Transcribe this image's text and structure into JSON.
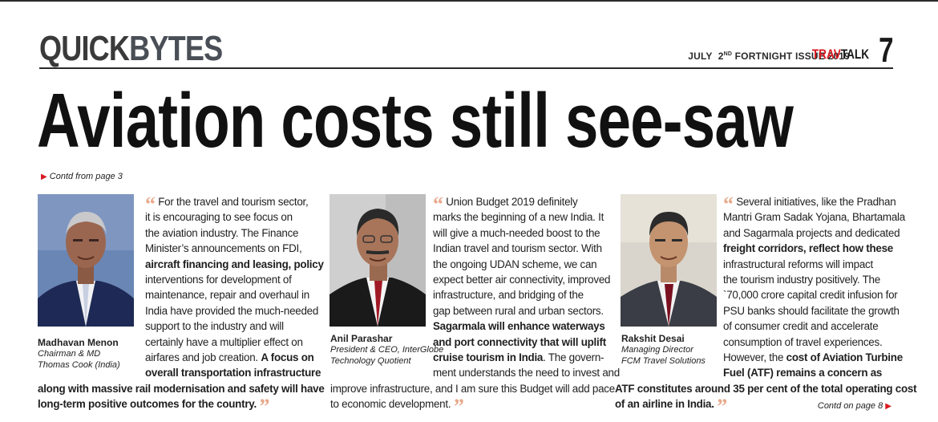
{
  "header": {
    "section_a": "QUICK",
    "section_b": "BYTES",
    "issue": "JULY  2ND FORTNIGHT ISSUE 2019",
    "brand_a": "TRAV",
    "brand_b": "TALK",
    "page_number": "7"
  },
  "headline": "Aviation costs still see-saw",
  "contd_from": "Contd from page 3",
  "contd_to": "Contd on page 8",
  "columns": [
    {
      "name": "Madhavan Menon",
      "title1": "Chairman & MD",
      "title2": "Thomas Cook (India)",
      "lines": [
        "For the travel and tourism sector,",
        "it is encouraging to see focus on",
        "the aviation industry. The Finance",
        "Minister’s announcements on FDI,",
        "aircraft financing and leasing, policy",
        "interventions for development of",
        "maintenance, repair and overhaul in",
        "India have provided the much-needed",
        " support to the industry and will",
        "certainly have a multiplier effect on",
        "airfares and job creation.",
        "A focus on",
        "overall transportation infrastructure",
        "along with massive rail modernisation and safety will have",
        "long-term positive outcomes for the country."
      ]
    },
    {
      "name": "Anil Parashar",
      "title1": "President & CEO, InterGlobe",
      "title2": "Technology Quotient",
      "lines": [
        "Union Budget 2019 definitely",
        "marks the beginning of a new India. It",
        "will give a much-needed boost to the",
        "Indian travel and tourism sector. With",
        "the ongoing UDAN scheme, we can",
        "expect better air connectivity, improved",
        "infrastructure, and bridging of the",
        "gap between rural and urban sectors.",
        "Sagarmala will enhance waterways",
        "and port connectivity that will uplift",
        "cruise tourism in India",
        ". The govern-",
        "ment understands the need to invest and",
        "improve infrastructure, and I am sure this Budget will add pace",
        "to economic development."
      ]
    },
    {
      "name": "Rakshit Desai",
      "title1": "Managing Director",
      "title2": "FCM Travel Solutions",
      "lines": [
        "Several initiatives, like the Pradhan",
        "Mantri Gram Sadak Yojana, Bhartamala",
        "and Sagarmala projects and dedicated",
        "freight corridors, reflect how these",
        "infrastructural reforms will impact",
        "the tourism industry positively. The",
        "`70,000 crore capital credit infusion for",
        "PSU banks should facilitate the growth",
        "of consumer credit and accelerate",
        "consumption of travel experiences.",
        "However, the",
        "cost of Aviation Turbine",
        "Fuel (ATF) remains a concern as",
        "ATF constitutes around 35 per cent of the total operating cost",
        "of an airline in India."
      ]
    }
  ]
}
